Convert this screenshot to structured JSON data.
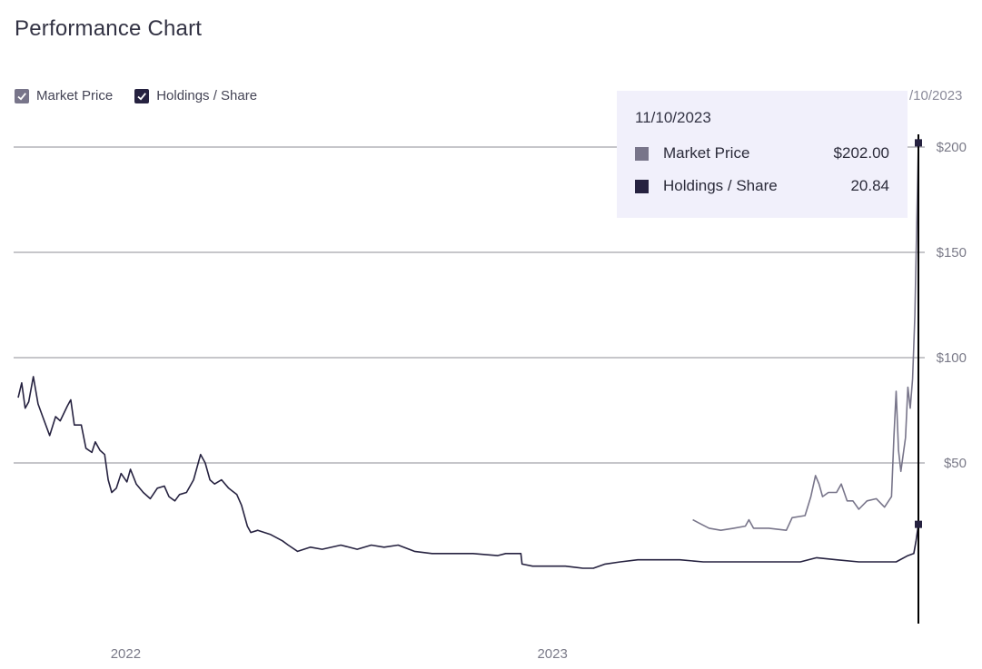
{
  "title": "Performance Chart",
  "legend": [
    {
      "label": "Market Price",
      "color": "#78758a",
      "checked": true
    },
    {
      "label": "Holdings / Share",
      "color": "#262240",
      "checked": true
    }
  ],
  "hover_date_fragment": "/10/2023",
  "tooltip": {
    "date": "11/10/2023",
    "rows": [
      {
        "label": "Market Price",
        "value": "$202.00",
        "color": "#78758a"
      },
      {
        "label": "Holdings / Share",
        "value": "20.84",
        "color": "#262240"
      }
    ]
  },
  "chart_data": {
    "type": "line",
    "x_range": [
      "2021-10-01",
      "2023-11-10"
    ],
    "x_ticks": [
      {
        "label": "2022",
        "date": "2022-01-01"
      },
      {
        "label": "2023",
        "date": "2023-01-01"
      }
    ],
    "y_ticks": [
      {
        "label": "$200",
        "value": 200
      },
      {
        "label": "$150",
        "value": 150
      },
      {
        "label": "$100",
        "value": 100
      },
      {
        "label": "$50",
        "value": 50
      }
    ],
    "grid": "horizontal",
    "legend_position": "top-left",
    "hover_date": "2023-11-10",
    "series": [
      {
        "name": "Market Price",
        "color": "#78758a",
        "points": [
          [
            "2023-05-01",
            23
          ],
          [
            "2023-05-08",
            21
          ],
          [
            "2023-05-15",
            19
          ],
          [
            "2023-05-25",
            18
          ],
          [
            "2023-06-05",
            19
          ],
          [
            "2023-06-15",
            20
          ],
          [
            "2023-06-18",
            23
          ],
          [
            "2023-06-22",
            19
          ],
          [
            "2023-07-05",
            19
          ],
          [
            "2023-07-20",
            18
          ],
          [
            "2023-07-25",
            24
          ],
          [
            "2023-08-05",
            25
          ],
          [
            "2023-08-10",
            34
          ],
          [
            "2023-08-14",
            44
          ],
          [
            "2023-08-17",
            40
          ],
          [
            "2023-08-20",
            34
          ],
          [
            "2023-08-25",
            36
          ],
          [
            "2023-09-01",
            36
          ],
          [
            "2023-09-05",
            40
          ],
          [
            "2023-09-10",
            32
          ],
          [
            "2023-09-15",
            32
          ],
          [
            "2023-09-20",
            28
          ],
          [
            "2023-09-27",
            32
          ],
          [
            "2023-10-05",
            33
          ],
          [
            "2023-10-12",
            29
          ],
          [
            "2023-10-18",
            34
          ],
          [
            "2023-10-20",
            62
          ],
          [
            "2023-10-22",
            84
          ],
          [
            "2023-10-24",
            56
          ],
          [
            "2023-10-26",
            46
          ],
          [
            "2023-10-30",
            62
          ],
          [
            "2023-11-01",
            86
          ],
          [
            "2023-11-03",
            76
          ],
          [
            "2023-11-05",
            90
          ],
          [
            "2023-11-07",
            120
          ],
          [
            "2023-11-10",
            202
          ]
        ]
      },
      {
        "name": "Holdings / Share",
        "color": "#262240",
        "points": [
          [
            "2021-10-01",
            81
          ],
          [
            "2021-10-04",
            88
          ],
          [
            "2021-10-07",
            76
          ],
          [
            "2021-10-10",
            79
          ],
          [
            "2021-10-14",
            91
          ],
          [
            "2021-10-18",
            78
          ],
          [
            "2021-10-22",
            72
          ],
          [
            "2021-10-28",
            63
          ],
          [
            "2021-11-02",
            72
          ],
          [
            "2021-11-06",
            70
          ],
          [
            "2021-11-12",
            77
          ],
          [
            "2021-11-15",
            80
          ],
          [
            "2021-11-18",
            68
          ],
          [
            "2021-11-24",
            68
          ],
          [
            "2021-11-28",
            57
          ],
          [
            "2021-12-03",
            55
          ],
          [
            "2021-12-06",
            60
          ],
          [
            "2021-12-10",
            56
          ],
          [
            "2021-12-14",
            54
          ],
          [
            "2021-12-17",
            42
          ],
          [
            "2021-12-20",
            36
          ],
          [
            "2021-12-24",
            38
          ],
          [
            "2021-12-28",
            45
          ],
          [
            "2022-01-02",
            41
          ],
          [
            "2022-01-05",
            47
          ],
          [
            "2022-01-10",
            40
          ],
          [
            "2022-01-16",
            36
          ],
          [
            "2022-01-22",
            33
          ],
          [
            "2022-01-28",
            38
          ],
          [
            "2022-02-03",
            39
          ],
          [
            "2022-02-07",
            34
          ],
          [
            "2022-02-12",
            32
          ],
          [
            "2022-02-16",
            35
          ],
          [
            "2022-02-22",
            36
          ],
          [
            "2022-02-28",
            42
          ],
          [
            "2022-03-06",
            54
          ],
          [
            "2022-03-10",
            50
          ],
          [
            "2022-03-14",
            42
          ],
          [
            "2022-03-18",
            40
          ],
          [
            "2022-03-24",
            42
          ],
          [
            "2022-03-30",
            38
          ],
          [
            "2022-04-06",
            35
          ],
          [
            "2022-04-10",
            30
          ],
          [
            "2022-04-15",
            20
          ],
          [
            "2022-04-18",
            17
          ],
          [
            "2022-04-24",
            18
          ],
          [
            "2022-05-05",
            16
          ],
          [
            "2022-05-15",
            13
          ],
          [
            "2022-05-20",
            11
          ],
          [
            "2022-05-28",
            8
          ],
          [
            "2022-06-08",
            10
          ],
          [
            "2022-06-18",
            9
          ],
          [
            "2022-07-04",
            11
          ],
          [
            "2022-07-18",
            9
          ],
          [
            "2022-07-30",
            11
          ],
          [
            "2022-08-10",
            10
          ],
          [
            "2022-08-22",
            11
          ],
          [
            "2022-09-05",
            8
          ],
          [
            "2022-09-20",
            7
          ],
          [
            "2022-10-08",
            7
          ],
          [
            "2022-10-25",
            7
          ],
          [
            "2022-11-15",
            6
          ],
          [
            "2022-11-22",
            7
          ],
          [
            "2022-12-05",
            7
          ],
          [
            "2022-12-06",
            2
          ],
          [
            "2022-12-15",
            1
          ],
          [
            "2022-12-28",
            1
          ],
          [
            "2023-01-12",
            1
          ],
          [
            "2023-01-27",
            0
          ],
          [
            "2023-02-05",
            0
          ],
          [
            "2023-02-15",
            2
          ],
          [
            "2023-02-28",
            3
          ],
          [
            "2023-03-15",
            4
          ],
          [
            "2023-04-01",
            4
          ],
          [
            "2023-04-20",
            4
          ],
          [
            "2023-05-10",
            3
          ],
          [
            "2023-06-01",
            3
          ],
          [
            "2023-06-25",
            3
          ],
          [
            "2023-07-15",
            3
          ],
          [
            "2023-08-01",
            3
          ],
          [
            "2023-08-15",
            5
          ],
          [
            "2023-09-01",
            4
          ],
          [
            "2023-09-20",
            3
          ],
          [
            "2023-10-10",
            3
          ],
          [
            "2023-10-22",
            3
          ],
          [
            "2023-11-01",
            6
          ],
          [
            "2023-11-06",
            7
          ],
          [
            "2023-11-08",
            13
          ],
          [
            "2023-11-10",
            20.84
          ]
        ]
      }
    ]
  }
}
